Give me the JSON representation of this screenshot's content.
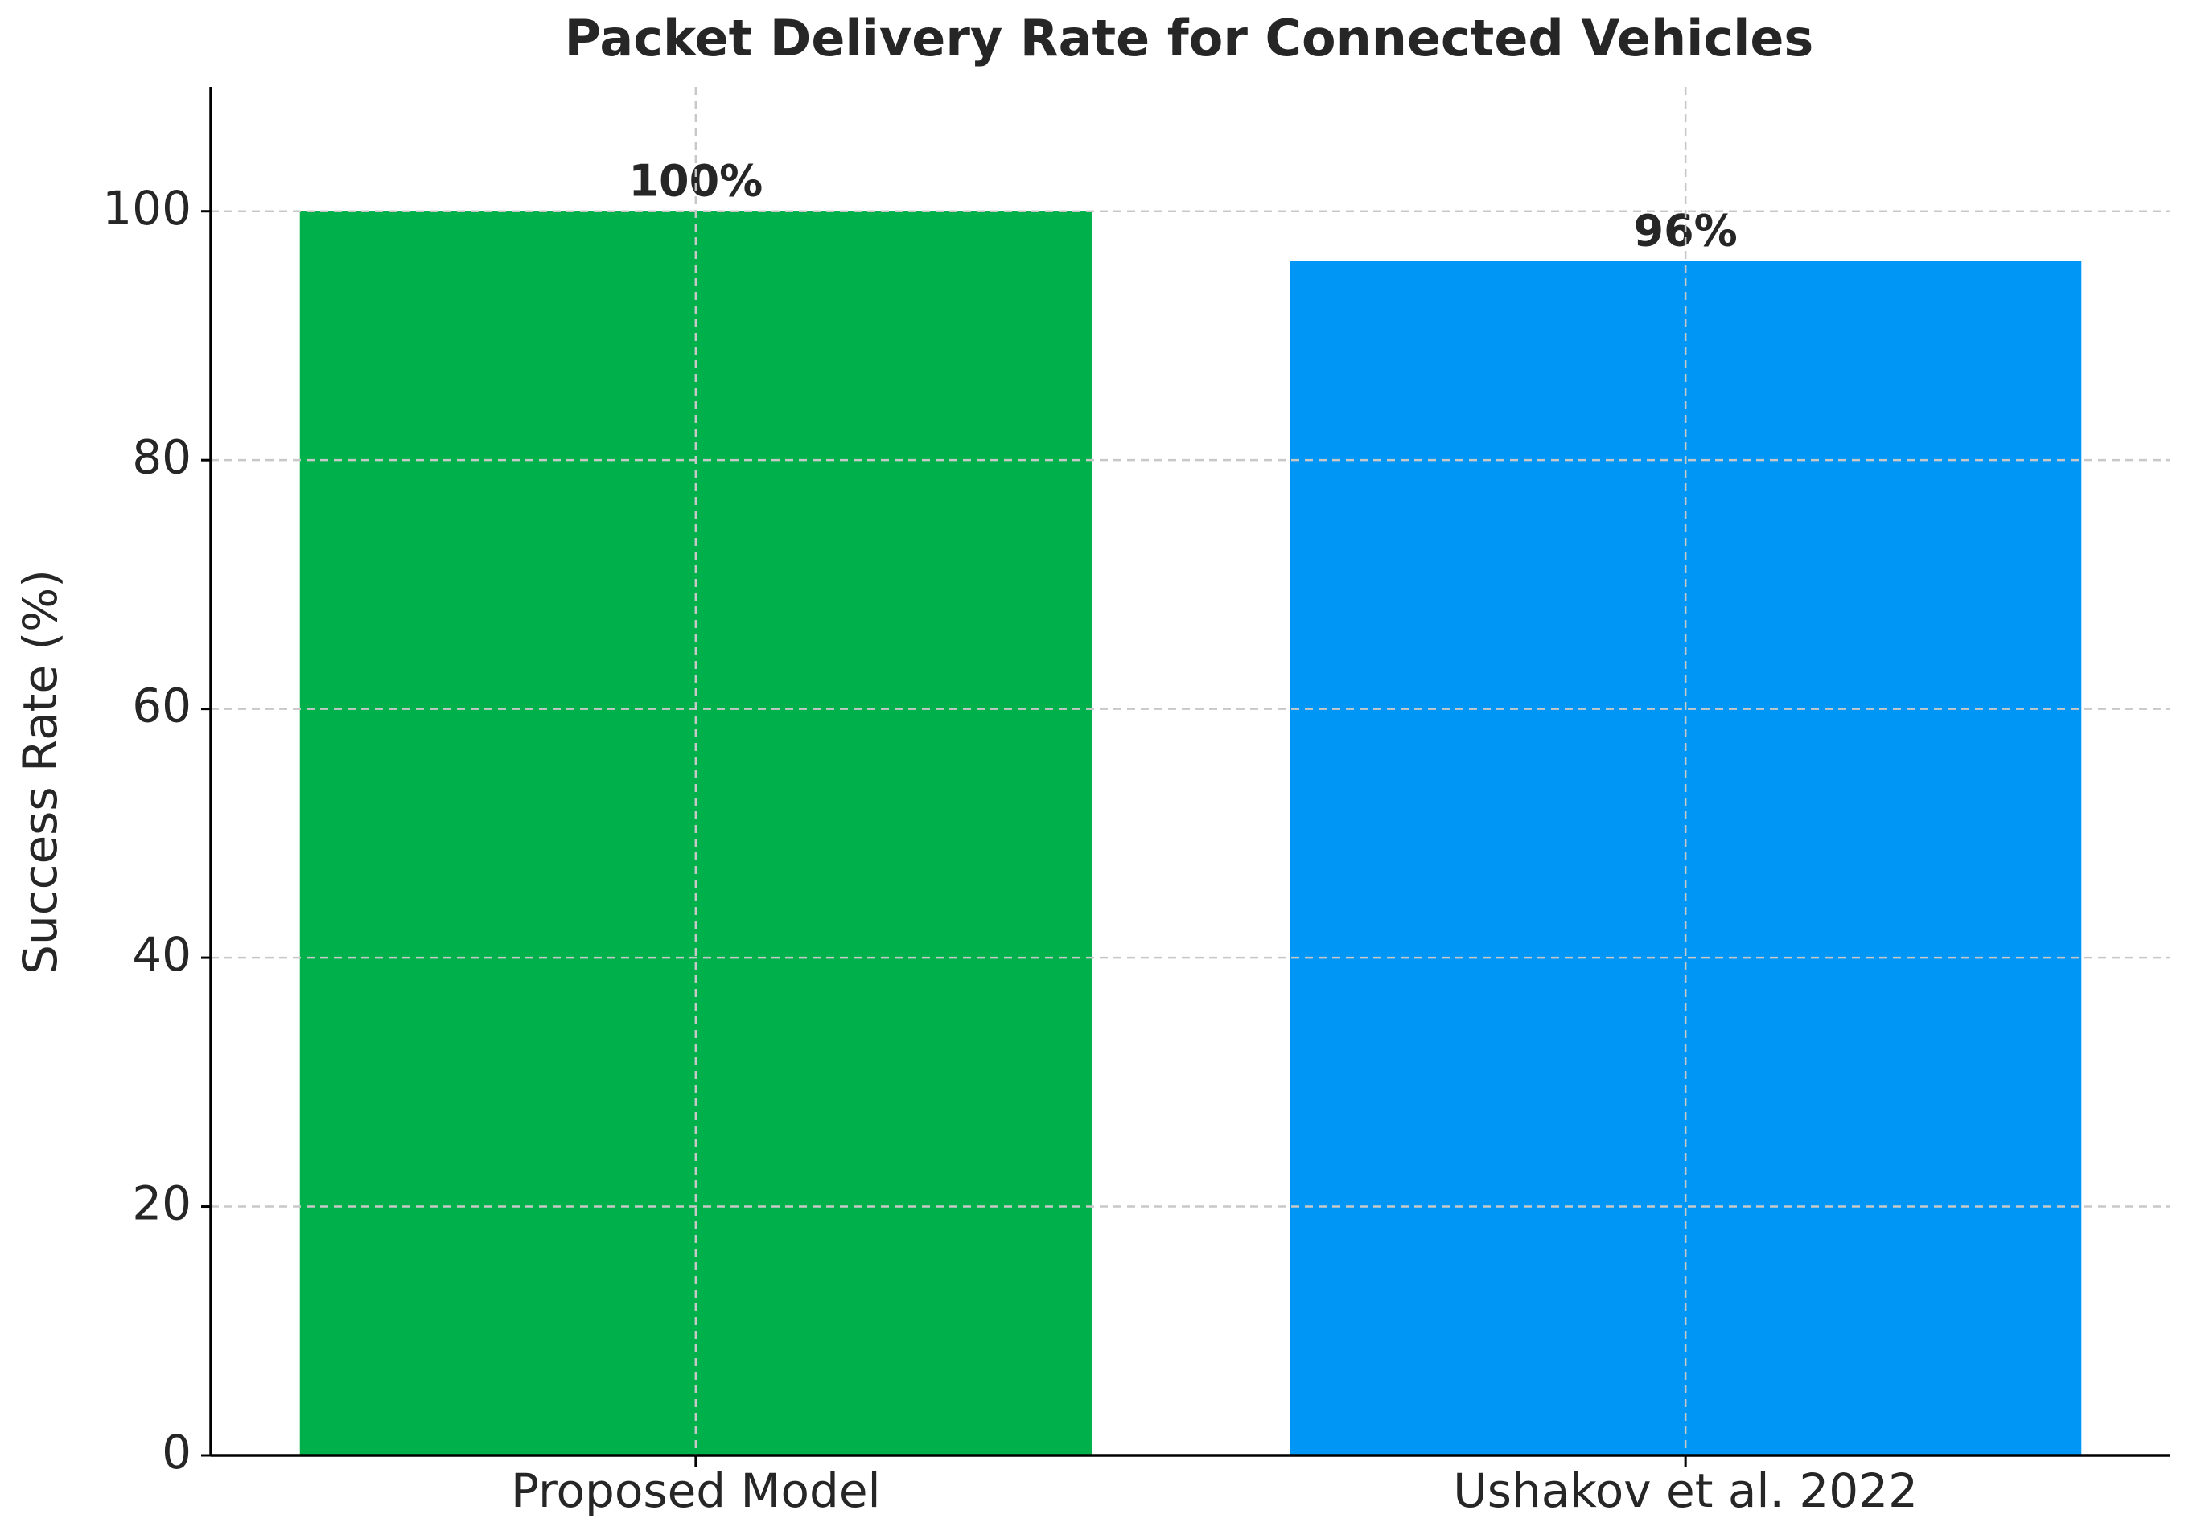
{
  "chart_data": {
    "type": "bar",
    "title": "Packet Delivery Rate for Connected Vehicles",
    "y_label": "Success Rate (%)",
    "categories": [
      "Proposed Model",
      "Ushakov et al. 2022"
    ],
    "values": [
      100,
      96
    ],
    "value_labels": [
      "100%",
      "96%"
    ],
    "colors": [
      "#00b04a",
      "#0096f5"
    ],
    "ylim": [
      0,
      110
    ],
    "yticks": [
      0,
      20,
      40,
      60,
      80,
      100
    ],
    "grid": true
  }
}
